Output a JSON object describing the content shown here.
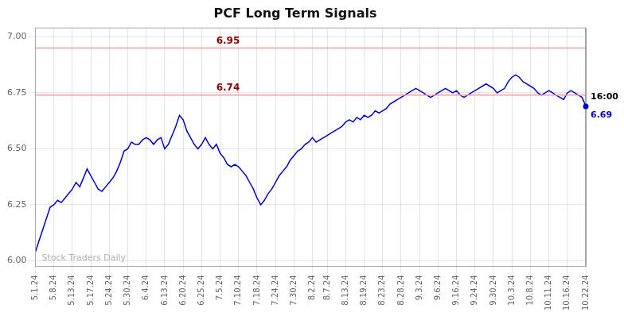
{
  "chart_data": {
    "type": "line",
    "title": "PCF Long Term Signals",
    "categories": [
      "5.1.24",
      null,
      null,
      null,
      null,
      "5.8.24",
      null,
      null,
      null,
      null,
      "5.13.24",
      null,
      null,
      null,
      null,
      "5.17.24",
      null,
      null,
      null,
      null,
      "5.24.24",
      null,
      null,
      null,
      null,
      "5.30.24",
      null,
      null,
      null,
      null,
      "6.4.24",
      null,
      null,
      null,
      null,
      "6.13.24",
      null,
      null,
      null,
      null,
      "6.20.24",
      null,
      null,
      null,
      null,
      "6.25.24",
      null,
      null,
      null,
      null,
      "7.5.24",
      null,
      null,
      null,
      null,
      "7.10.24",
      null,
      null,
      null,
      null,
      "7.18.24",
      null,
      null,
      null,
      null,
      "7.24.24",
      null,
      null,
      null,
      null,
      "7.30.24",
      null,
      null,
      null,
      null,
      "8.2.24",
      null,
      null,
      null,
      "8.7.24",
      null,
      null,
      null,
      null,
      "8.13.24",
      null,
      null,
      null,
      null,
      "8.19.24",
      null,
      null,
      null,
      null,
      "8.23.24",
      null,
      null,
      null,
      null,
      "8.28.24",
      null,
      null,
      null,
      null,
      "9.3.24",
      null,
      null,
      null,
      null,
      "9.6.24",
      null,
      null,
      null,
      null,
      "9.16.24",
      null,
      null,
      null,
      null,
      "9.24.24",
      null,
      null,
      null,
      null,
      "9.30.24",
      null,
      null,
      null,
      null,
      "10.3.24",
      null,
      null,
      null,
      null,
      "10.8.24",
      null,
      null,
      null,
      null,
      "10.11.24",
      null,
      null,
      null,
      null,
      "10.16.24",
      null,
      null,
      null,
      null,
      "10.22.24"
    ],
    "values": [
      6.04,
      6.09,
      6.14,
      6.19,
      6.24,
      6.25,
      6.27,
      6.26,
      6.28,
      6.3,
      6.32,
      6.35,
      6.33,
      6.37,
      6.41,
      6.38,
      6.35,
      6.32,
      6.31,
      6.33,
      6.35,
      6.37,
      6.4,
      6.44,
      6.49,
      6.5,
      6.53,
      6.52,
      6.52,
      6.54,
      6.55,
      6.54,
      6.52,
      6.54,
      6.55,
      6.5,
      6.52,
      6.56,
      6.6,
      6.65,
      6.63,
      6.58,
      6.55,
      6.52,
      6.5,
      6.52,
      6.55,
      6.52,
      6.5,
      6.52,
      6.48,
      6.46,
      6.43,
      6.42,
      6.43,
      6.42,
      6.4,
      6.38,
      6.35,
      6.32,
      6.28,
      6.25,
      6.27,
      6.3,
      6.32,
      6.35,
      6.38,
      6.4,
      6.42,
      6.45,
      6.47,
      6.49,
      6.5,
      6.52,
      6.53,
      6.55,
      6.53,
      6.54,
      6.55,
      6.56,
      6.57,
      6.58,
      6.59,
      6.6,
      6.62,
      6.63,
      6.62,
      6.64,
      6.63,
      6.65,
      6.64,
      6.65,
      6.67,
      6.66,
      6.67,
      6.68,
      6.7,
      6.71,
      6.72,
      6.73,
      6.74,
      6.75,
      6.76,
      6.77,
      6.76,
      6.75,
      6.74,
      6.73,
      6.74,
      6.75,
      6.76,
      6.77,
      6.76,
      6.75,
      6.76,
      6.74,
      6.73,
      6.74,
      6.75,
      6.76,
      6.77,
      6.78,
      6.79,
      6.78,
      6.77,
      6.75,
      6.76,
      6.77,
      6.8,
      6.82,
      6.83,
      6.82,
      6.8,
      6.79,
      6.78,
      6.77,
      6.75,
      6.74,
      6.75,
      6.76,
      6.75,
      6.74,
      6.73,
      6.72,
      6.75,
      6.76,
      6.75,
      6.74,
      6.73,
      6.69
    ],
    "color": "#0000cc",
    "hlines": [
      {
        "value": 6.95,
        "label": "6.95",
        "color": "#f4a0a0"
      },
      {
        "value": 6.74,
        "label": "6.74",
        "color": "#f4a0a0"
      }
    ],
    "last_point": {
      "time_label": "16:00",
      "value": 6.69,
      "marker": "circle"
    },
    "annotations": [
      "Stock Traders Daily"
    ],
    "ylim": [
      5.975,
      7.04
    ],
    "yticks": [
      {
        "value": 6.0,
        "label": "6.00"
      },
      {
        "value": 6.25,
        "label": "6.25"
      },
      {
        "value": 6.5,
        "label": "6.50"
      },
      {
        "value": 6.75,
        "label": "6.75"
      },
      {
        "value": 7.0,
        "label": "7.00"
      }
    ],
    "grid": true
  }
}
